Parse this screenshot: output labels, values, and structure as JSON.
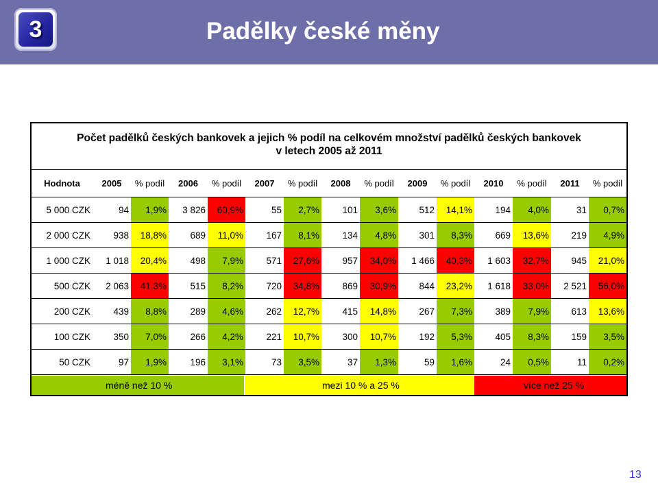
{
  "slide": {
    "number_badge": "3",
    "title": "Padělky české měny",
    "page_number": "13"
  },
  "table": {
    "title_line1": "Počet padělků českých bankovek a jejich % podíl na celkovém množství padělků českých bankovek",
    "title_line2": "v letech 2005 až 2011",
    "headers": [
      "Hodnota",
      "2005",
      "% podíl",
      "2006",
      "% podíl",
      "2007",
      "% podíl",
      "2008",
      "% podíl",
      "2009",
      "% podíl",
      "2010",
      "% podíl",
      "2011",
      "% podíl"
    ],
    "rows": [
      {
        "label": "5 000 CZK",
        "cells": [
          [
            "94",
            "1,9%",
            "g"
          ],
          [
            "3 826",
            "60,9%",
            "r"
          ],
          [
            "55",
            "2,7%",
            "g"
          ],
          [
            "101",
            "3,6%",
            "g"
          ],
          [
            "512",
            "14,1%",
            "y"
          ],
          [
            "194",
            "4,0%",
            "g"
          ],
          [
            "31",
            "0,7%",
            "g"
          ]
        ]
      },
      {
        "label": "2 000 CZK",
        "cells": [
          [
            "938",
            "18,8%",
            "y"
          ],
          [
            "689",
            "11,0%",
            "y"
          ],
          [
            "167",
            "8,1%",
            "g"
          ],
          [
            "134",
            "4,8%",
            "g"
          ],
          [
            "301",
            "8,3%",
            "g"
          ],
          [
            "669",
            "13,6%",
            "y"
          ],
          [
            "219",
            "4,9%",
            "g"
          ]
        ]
      },
      {
        "label": "1 000 CZK",
        "cells": [
          [
            "1 018",
            "20,4%",
            "y"
          ],
          [
            "498",
            "7,9%",
            "g"
          ],
          [
            "571",
            "27,6%",
            "r"
          ],
          [
            "957",
            "34,0%",
            "r"
          ],
          [
            "1 466",
            "40,3%",
            "r"
          ],
          [
            "1 603",
            "32,7%",
            "r"
          ],
          [
            "945",
            "21,0%",
            "y"
          ]
        ]
      },
      {
        "label": "500 CZK",
        "cells": [
          [
            "2 063",
            "41,3%",
            "r"
          ],
          [
            "515",
            "8,2%",
            "g"
          ],
          [
            "720",
            "34,8%",
            "r"
          ],
          [
            "869",
            "30,9%",
            "r"
          ],
          [
            "844",
            "23,2%",
            "y"
          ],
          [
            "1 618",
            "33,0%",
            "r"
          ],
          [
            "2 521",
            "56,0%",
            "r"
          ]
        ]
      },
      {
        "label": "200 CZK",
        "cells": [
          [
            "439",
            "8,8%",
            "g"
          ],
          [
            "289",
            "4,6%",
            "g"
          ],
          [
            "262",
            "12,7%",
            "y"
          ],
          [
            "415",
            "14,8%",
            "y"
          ],
          [
            "267",
            "7,3%",
            "g"
          ],
          [
            "389",
            "7,9%",
            "g"
          ],
          [
            "613",
            "13,6%",
            "y"
          ]
        ]
      },
      {
        "label": "100 CZK",
        "cells": [
          [
            "350",
            "7,0%",
            "g"
          ],
          [
            "266",
            "4,2%",
            "g"
          ],
          [
            "221",
            "10,7%",
            "y"
          ],
          [
            "300",
            "10,7%",
            "y"
          ],
          [
            "192",
            "5,3%",
            "g"
          ],
          [
            "405",
            "8,3%",
            "g"
          ],
          [
            "159",
            "3,5%",
            "g"
          ]
        ]
      },
      {
        "label": "50 CZK",
        "cells": [
          [
            "97",
            "1,9%",
            "g"
          ],
          [
            "196",
            "3,1%",
            "g"
          ],
          [
            "73",
            "3,5%",
            "g"
          ],
          [
            "37",
            "1,3%",
            "g"
          ],
          [
            "59",
            "1,6%",
            "g"
          ],
          [
            "24",
            "0,5%",
            "g"
          ],
          [
            "11",
            "0,2%",
            "g"
          ]
        ]
      }
    ],
    "legend": {
      "green": "méně než 10 %",
      "yellow": "mezi 10 % a 25 %",
      "red": "více než 25 %"
    }
  }
}
